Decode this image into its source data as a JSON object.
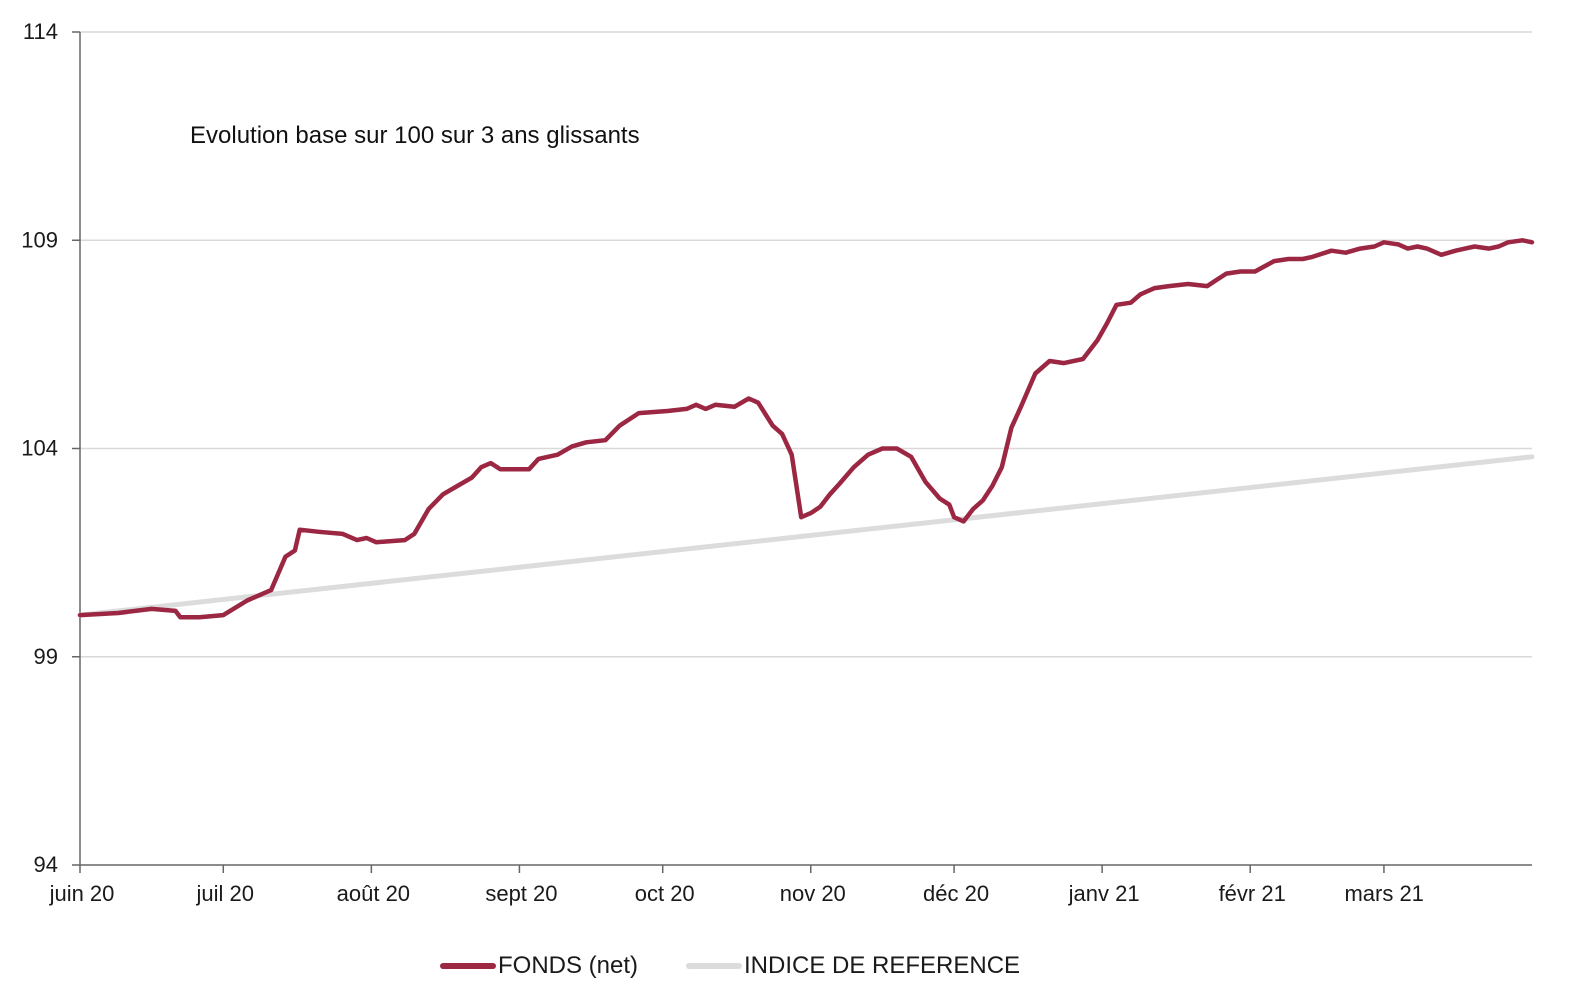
{
  "chart_data": {
    "type": "line",
    "annotation": "Evolution base sur 100 sur 3 ans glissants",
    "x_tick_labels": [
      "juin 20",
      "juil 20",
      "août 20",
      "sept 20",
      "oct 20",
      "nov 20",
      "déc 20",
      "janv 21",
      "févr 21",
      "mars 21"
    ],
    "y_tick_labels": [
      "94",
      "99",
      "104",
      "109",
      "114"
    ],
    "ylim": [
      94,
      114
    ],
    "grid": true,
    "legend_position": "bottom",
    "series": [
      {
        "name": "FONDS (net)",
        "color": "#9b2743",
        "points": [
          [
            0,
            100.0
          ],
          [
            8,
            100.05
          ],
          [
            15,
            100.15
          ],
          [
            20,
            100.1
          ],
          [
            21,
            99.95
          ],
          [
            25,
            99.95
          ],
          [
            30,
            100.0
          ],
          [
            35,
            100.35
          ],
          [
            40,
            100.6
          ],
          [
            43,
            101.4
          ],
          [
            45,
            101.55
          ],
          [
            46,
            102.05
          ],
          [
            50,
            102.0
          ],
          [
            55,
            101.95
          ],
          [
            58,
            101.8
          ],
          [
            60,
            101.85
          ],
          [
            62,
            101.75
          ],
          [
            68,
            101.8
          ],
          [
            70,
            101.95
          ],
          [
            73,
            102.55
          ],
          [
            76,
            102.9
          ],
          [
            79,
            103.1
          ],
          [
            82,
            103.3
          ],
          [
            84,
            103.55
          ],
          [
            86,
            103.65
          ],
          [
            88,
            103.5
          ],
          [
            94,
            103.5
          ],
          [
            96,
            103.75
          ],
          [
            100,
            103.85
          ],
          [
            103,
            104.05
          ],
          [
            106,
            104.15
          ],
          [
            110,
            104.2
          ],
          [
            113,
            104.55
          ],
          [
            117,
            104.85
          ],
          [
            123,
            104.9
          ],
          [
            127,
            104.95
          ],
          [
            129,
            105.05
          ],
          [
            131,
            104.95
          ],
          [
            133,
            105.05
          ],
          [
            137,
            105.0
          ],
          [
            140,
            105.2
          ],
          [
            142,
            105.1
          ],
          [
            145,
            104.55
          ],
          [
            147,
            104.35
          ],
          [
            149,
            103.85
          ],
          [
            151,
            102.35
          ],
          [
            153,
            102.45
          ],
          [
            155,
            102.6
          ],
          [
            157,
            102.9
          ],
          [
            159,
            103.15
          ],
          [
            162,
            103.55
          ],
          [
            165,
            103.85
          ],
          [
            168,
            104.0
          ],
          [
            171,
            104.0
          ],
          [
            174,
            103.8
          ],
          [
            177,
            103.2
          ],
          [
            180,
            102.8
          ],
          [
            182,
            102.65
          ],
          [
            183,
            102.35
          ],
          [
            185,
            102.25
          ],
          [
            187,
            102.55
          ],
          [
            189,
            102.75
          ],
          [
            191,
            103.1
          ],
          [
            193,
            103.55
          ],
          [
            195,
            104.5
          ],
          [
            197,
            105.0
          ],
          [
            200,
            105.8
          ],
          [
            203,
            106.1
          ],
          [
            206,
            106.05
          ],
          [
            210,
            106.15
          ],
          [
            213,
            106.6
          ],
          [
            215,
            107.0
          ],
          [
            217,
            107.45
          ],
          [
            220,
            107.5
          ],
          [
            222,
            107.7
          ],
          [
            225,
            107.85
          ],
          [
            228,
            107.9
          ],
          [
            232,
            107.95
          ],
          [
            236,
            107.9
          ],
          [
            238,
            108.05
          ],
          [
            240,
            108.2
          ],
          [
            243,
            108.25
          ],
          [
            246,
            108.25
          ],
          [
            250,
            108.5
          ],
          [
            253,
            108.55
          ],
          [
            256,
            108.55
          ],
          [
            258,
            108.6
          ],
          [
            262,
            108.75
          ],
          [
            265,
            108.7
          ],
          [
            268,
            108.8
          ],
          [
            271,
            108.85
          ],
          [
            273,
            108.95
          ],
          [
            276,
            108.9
          ],
          [
            278,
            108.8
          ],
          [
            280,
            108.85
          ],
          [
            282,
            108.8
          ],
          [
            285,
            108.65
          ],
          [
            288,
            108.75
          ],
          [
            290,
            108.8
          ],
          [
            292,
            108.85
          ],
          [
            295,
            108.8
          ],
          [
            297,
            108.85
          ],
          [
            299,
            108.95
          ],
          [
            302,
            109.0
          ],
          [
            304,
            108.95
          ]
        ],
        "note": ""
      },
      {
        "name": "INDICE DE REFERENCE",
        "color": "#dcdcdc",
        "points": [
          [
            0,
            100.0
          ],
          [
            304,
            103.8
          ]
        ]
      }
    ]
  },
  "legend": {
    "fonds_label": "FONDS (net)",
    "indice_label": "INDICE DE REFERENCE"
  }
}
